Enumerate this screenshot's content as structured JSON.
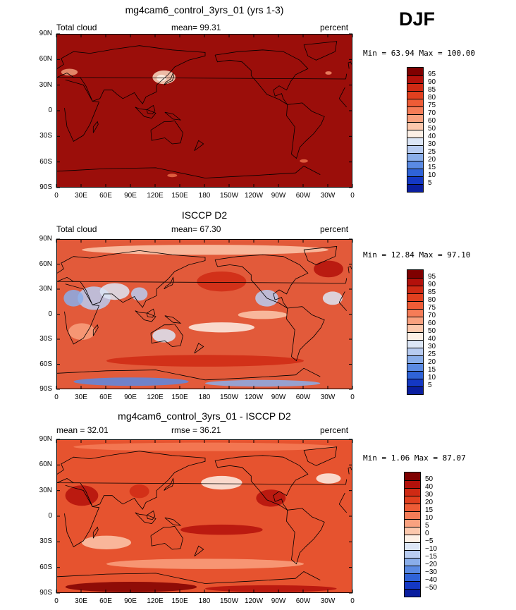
{
  "season": "DJF",
  "panels": [
    {
      "id": "model",
      "title": "mg4cam6_control_3yrs_01 (yrs 1-3)",
      "left_label": "Total cloud",
      "center_label": "mean=  99.31",
      "right_label": "percent",
      "minmax": "Min =  63.94 Max = 100.00",
      "legend": "abs",
      "fill": "#9b0e0a"
    },
    {
      "id": "obs",
      "title": "ISCCP D2",
      "left_label": "Total cloud",
      "center_label": "mean=  67.30",
      "right_label": "percent",
      "minmax": "Min =  12.84 Max =  97.10",
      "legend": "abs",
      "fill": "#e25a3a"
    },
    {
      "id": "diff",
      "title": "mg4cam6_control_3yrs_01 - ISCCP D2",
      "left_label": "mean =  32.01",
      "center_label": "rmse =  36.21",
      "right_label": "percent",
      "minmax": "Min =   1.06 Max =  87.07",
      "legend": "diff",
      "fill": "#e6532f"
    }
  ],
  "lat_ticks": [
    "90N",
    "60N",
    "30N",
    "0",
    "30S",
    "60S",
    "90S"
  ],
  "lon_ticks": [
    "0",
    "30E",
    "60E",
    "90E",
    "120E",
    "150E",
    "180",
    "150W",
    "120W",
    "90W",
    "60W",
    "30W",
    "0"
  ],
  "legends": {
    "abs": {
      "labels": [
        "95",
        "90",
        "85",
        "80",
        "75",
        "70",
        "60",
        "50",
        "40",
        "30",
        "25",
        "20",
        "15",
        "10",
        "5"
      ],
      "colors": [
        "#7f0000",
        "#b3110b",
        "#cf2a14",
        "#e1401f",
        "#ee5c36",
        "#f57c57",
        "#f9a17f",
        "#fcc8ad",
        "#fdf0e6",
        "#dce6f6",
        "#b8ccf1",
        "#8aaeea",
        "#5a8ae3",
        "#2f63d8",
        "#1438c4",
        "#0a1e9f"
      ]
    },
    "diff": {
      "labels": [
        "50",
        "40",
        "30",
        "20",
        "15",
        "10",
        "5",
        "0",
        "−5",
        "−10",
        "−15",
        "−20",
        "−30",
        "−40",
        "−50"
      ],
      "colors": [
        "#7f0000",
        "#b3110b",
        "#cf2a14",
        "#e1401f",
        "#ee5c36",
        "#f57c57",
        "#f9a17f",
        "#fcc8ad",
        "#fdf0e6",
        "#dce6f6",
        "#b8ccf1",
        "#8aaeea",
        "#5a8ae3",
        "#2f63d8",
        "#1438c4",
        "#0a1e9f"
      ]
    }
  }
}
